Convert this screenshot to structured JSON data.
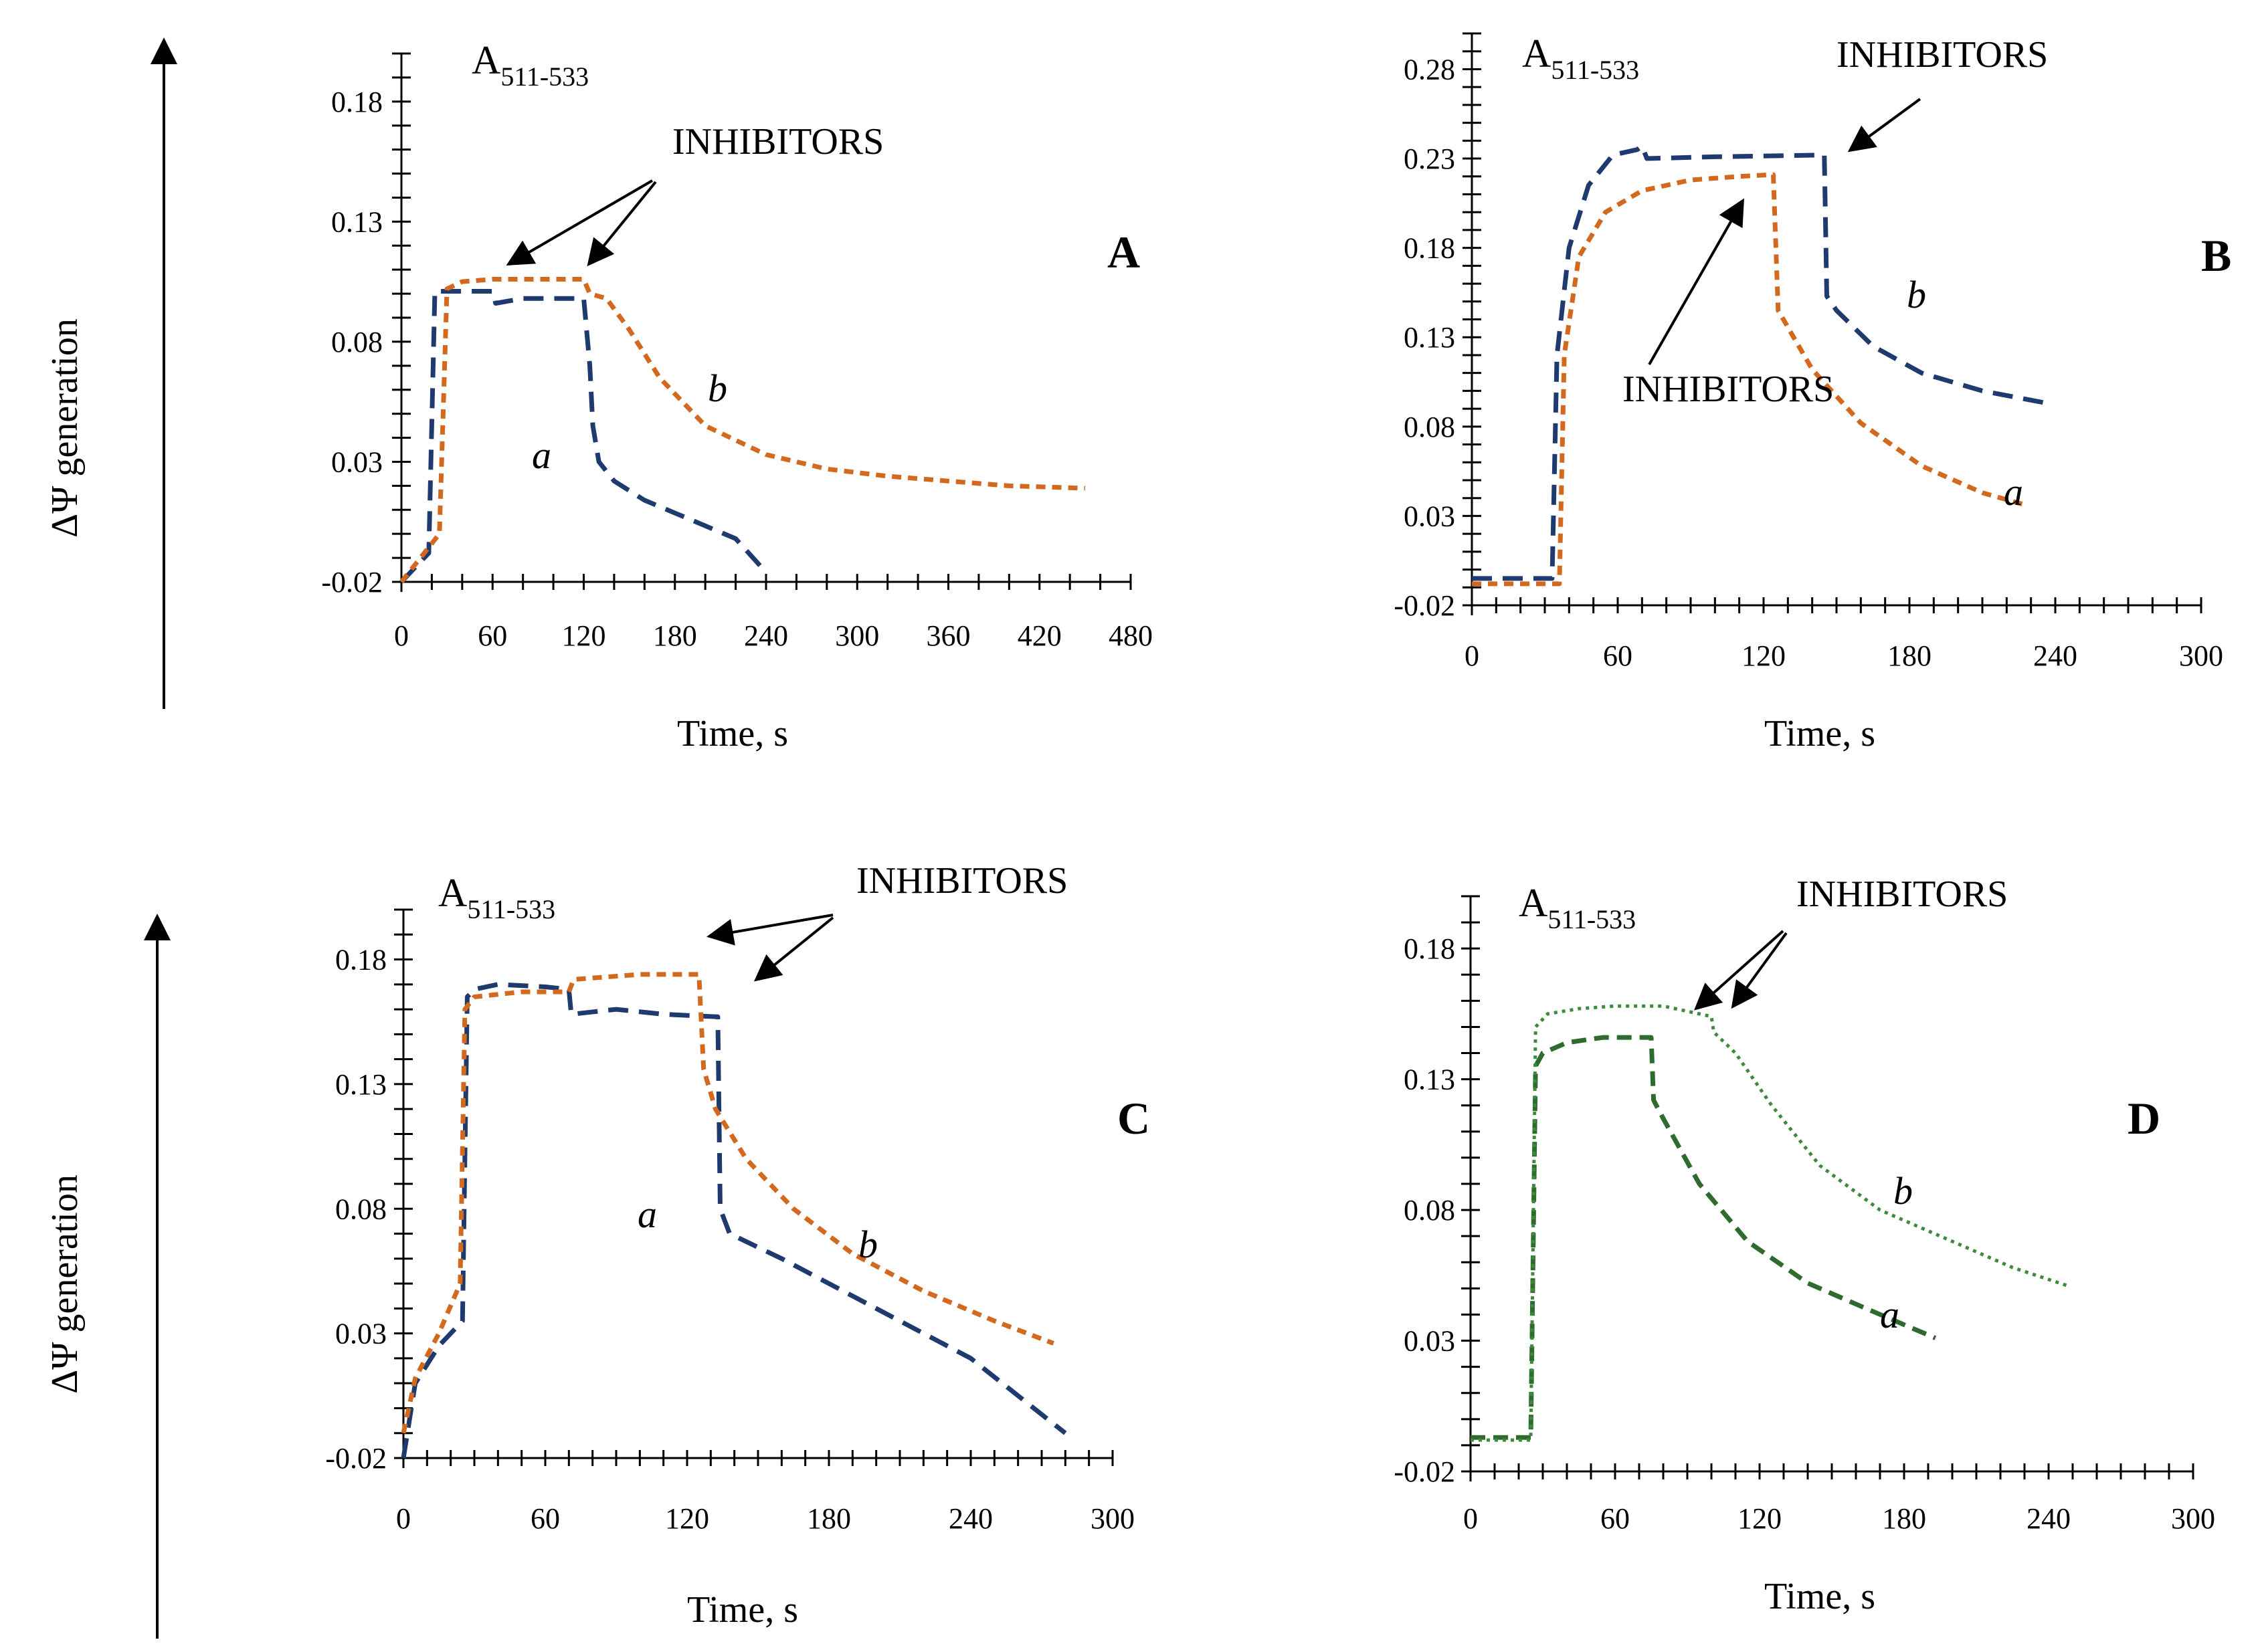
{
  "y_axis_title": "ΔΨ generation",
  "chart_data": [
    {
      "type": "line",
      "panel": "A",
      "annotation_main": "A",
      "annotation_sub": "511-533",
      "inhibitors_label": "INHIBITORS",
      "xlabel": "Time, s",
      "ylabel": "ΔΨ generation",
      "xlim": [
        0,
        480
      ],
      "ylim": [
        -0.02,
        0.2
      ],
      "xticks": [
        "0",
        "60",
        "120",
        "180",
        "240",
        "300",
        "360",
        "420",
        "480"
      ],
      "yticks": [
        "-0.02",
        "0.03",
        "0.08",
        "0.13",
        "0.18"
      ],
      "series": [
        {
          "name": "a",
          "label": "a",
          "color": "#1f3a6e",
          "x": [
            0,
            18,
            22,
            60,
            62,
            80,
            120,
            124,
            126,
            130,
            140,
            160,
            190,
            220,
            240
          ],
          "y": [
            -0.02,
            -0.008,
            0.101,
            0.101,
            0.096,
            0.098,
            0.098,
            0.07,
            0.045,
            0.03,
            0.022,
            0.014,
            0.006,
            -0.002,
            -0.016
          ]
        },
        {
          "name": "b",
          "label": "b",
          "color": "#d2691e",
          "x": [
            0,
            25,
            30,
            40,
            60,
            90,
            120,
            124,
            135,
            150,
            170,
            200,
            240,
            280,
            320,
            360,
            400,
            450
          ],
          "y": [
            -0.02,
            0.0,
            0.102,
            0.105,
            0.106,
            0.106,
            0.106,
            0.1,
            0.098,
            0.085,
            0.065,
            0.045,
            0.033,
            0.027,
            0.024,
            0.022,
            0.02,
            0.019
          ]
        }
      ]
    },
    {
      "type": "line",
      "panel": "B",
      "annotation_main": "A",
      "annotation_sub": "511-533",
      "inhibitors_label": "INHIBITORS",
      "xlabel": "Time, s",
      "ylabel": "",
      "xlim": [
        0,
        300
      ],
      "ylim": [
        -0.02,
        0.3
      ],
      "xticks": [
        "0",
        "60",
        "120",
        "180",
        "240",
        "300"
      ],
      "yticks": [
        "-0.02",
        "0.03",
        "0.08",
        "0.13",
        "0.18",
        "0.23",
        "0.28"
      ],
      "series": [
        {
          "name": "b",
          "label": "b",
          "color": "#1f3a6e",
          "x": [
            0,
            33,
            35,
            40,
            48,
            58,
            68,
            70,
            72,
            100,
            145,
            146,
            150,
            165,
            185,
            210,
            237
          ],
          "y": [
            -0.005,
            -0.005,
            0.12,
            0.18,
            0.215,
            0.232,
            0.235,
            0.237,
            0.23,
            0.231,
            0.232,
            0.153,
            0.145,
            0.125,
            0.11,
            0.1,
            0.093
          ]
        },
        {
          "name": "a",
          "label": "a",
          "color": "#d2691e",
          "x": [
            0,
            36,
            38,
            44,
            55,
            70,
            90,
            110,
            124,
            126,
            140,
            160,
            185,
            210,
            228
          ],
          "y": [
            -0.008,
            -0.008,
            0.12,
            0.175,
            0.2,
            0.212,
            0.218,
            0.22,
            0.221,
            0.145,
            0.112,
            0.082,
            0.058,
            0.043,
            0.036
          ]
        }
      ]
    },
    {
      "type": "line",
      "panel": "C",
      "annotation_main": "A",
      "annotation_sub": "511-533",
      "inhibitors_label": "INHIBITORS",
      "xlabel": "Time, s",
      "ylabel": "ΔΨ generation",
      "xlim": [
        0,
        300
      ],
      "ylim": [
        -0.02,
        0.2
      ],
      "xticks": [
        "0",
        "60",
        "120",
        "180",
        "240",
        "300"
      ],
      "yticks": [
        "-0.02",
        "0.03",
        "0.08",
        "0.13",
        "0.18"
      ],
      "series": [
        {
          "name": "a",
          "label": "a",
          "color": "#1f3a6e",
          "x": [
            0,
            5,
            15,
            25,
            27,
            30,
            40,
            60,
            70,
            71,
            90,
            110,
            133,
            134,
            138,
            160,
            200,
            240,
            280
          ],
          "y": [
            -0.02,
            0.01,
            0.025,
            0.035,
            0.165,
            0.168,
            0.17,
            0.169,
            0.168,
            0.158,
            0.16,
            0.158,
            0.157,
            0.08,
            0.07,
            0.06,
            0.04,
            0.02,
            -0.01
          ]
        },
        {
          "name": "b",
          "label": "b",
          "color": "#d2691e",
          "x": [
            0,
            5,
            15,
            24,
            26,
            30,
            50,
            70,
            72,
            100,
            125,
            127,
            132,
            145,
            165,
            190,
            220,
            250,
            275
          ],
          "y": [
            -0.01,
            0.012,
            0.03,
            0.05,
            0.16,
            0.165,
            0.167,
            0.167,
            0.172,
            0.174,
            0.174,
            0.136,
            0.12,
            0.1,
            0.08,
            0.062,
            0.047,
            0.035,
            0.026
          ]
        }
      ]
    },
    {
      "type": "line",
      "panel": "D",
      "annotation_main": "A",
      "annotation_sub": "511-533",
      "inhibitors_label": "INHIBITORS",
      "xlabel": "Time, s",
      "ylabel": "",
      "xlim": [
        0,
        300
      ],
      "ylim": [
        -0.02,
        0.2
      ],
      "xticks": [
        "0",
        "60",
        "120",
        "180",
        "240",
        "300"
      ],
      "yticks": [
        "-0.02",
        "0.03",
        "0.08",
        "0.13",
        "0.18"
      ],
      "series": [
        {
          "name": "a",
          "label": "a",
          "color": "#2f6b2f",
          "x": [
            0,
            25,
            27,
            30,
            40,
            55,
            75,
            76,
            80,
            95,
            115,
            140,
            165,
            193
          ],
          "y": [
            -0.007,
            -0.007,
            0.135,
            0.14,
            0.144,
            0.146,
            0.146,
            0.122,
            0.115,
            0.09,
            0.068,
            0.052,
            0.042,
            0.031
          ]
        },
        {
          "name": "b",
          "label": "b",
          "color": "#3d8a3d",
          "x": [
            0,
            25,
            27,
            32,
            45,
            60,
            80,
            100,
            101,
            110,
            125,
            145,
            170,
            200,
            225,
            248
          ],
          "y": [
            -0.008,
            -0.008,
            0.15,
            0.155,
            0.157,
            0.158,
            0.158,
            0.154,
            0.148,
            0.14,
            0.12,
            0.097,
            0.08,
            0.068,
            0.058,
            0.051
          ]
        }
      ]
    }
  ]
}
